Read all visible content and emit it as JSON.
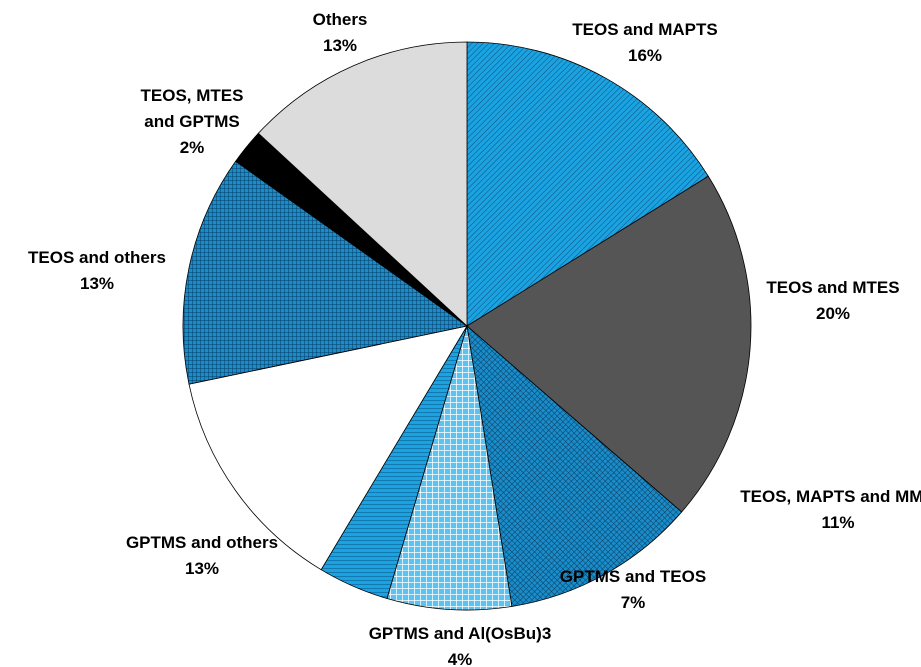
{
  "chart_data": {
    "type": "pie",
    "categories": [
      "TEOS and MAPTS",
      "TEOS and MTES",
      "TEOS, MAPTS and MMA",
      "GPTMS and TEOS",
      "GPTMS and Al(OsBu)3",
      "GPTMS and others",
      "TEOS and others",
      "TEOS, MTES and GPTMS",
      "Others"
    ],
    "values": [
      16,
      20,
      11,
      7,
      4,
      13,
      13,
      2,
      13
    ],
    "value_labels": [
      "16%",
      "20%",
      "11%",
      "7%",
      "4%",
      "13%",
      "13%",
      "2%",
      "13%"
    ],
    "colors": [
      "#1aa3e0",
      "#555555",
      "#1aa3e0",
      "#1aa3e0",
      "#1aa3e0",
      "#ffffff",
      "#1aa3e0",
      "#000000",
      "#dcdcdc"
    ],
    "patterns": [
      "diagonal",
      "none",
      "crosshatch",
      "grid-wide",
      "horizontal",
      "none",
      "grid",
      "none",
      "none"
    ]
  }
}
